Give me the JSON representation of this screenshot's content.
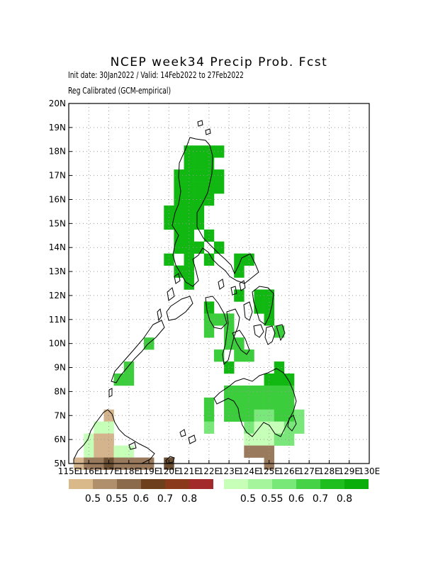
{
  "title": "NCEP week34 Precip Prob. Fcst",
  "subtitle_line1": "Init date: 30Jan2022 / Valid: 14Feb2022 to 27Feb2022",
  "subtitle_line2": "Reg Calibrated (GCM-empirical)",
  "axes": {
    "lon_range": [
      115,
      130
    ],
    "lat_range": [
      5,
      20
    ],
    "lon_tick_labels": [
      "115E",
      "116E",
      "117E",
      "118E",
      "119E",
      "120E",
      "121E",
      "122E",
      "123E",
      "124E",
      "125E",
      "126E",
      "127E",
      "128E",
      "129E",
      "130E"
    ],
    "lat_tick_labels": [
      "5N",
      "6N",
      "7N",
      "8N",
      "9N",
      "10N",
      "11N",
      "12N",
      "13N",
      "14N",
      "15N",
      "16N",
      "17N",
      "18N",
      "19N",
      "20N"
    ],
    "grid": true,
    "grid_style": "dotted"
  },
  "legend_dry": {
    "colors": [
      "#d9b98a",
      "#b0906c",
      "#8b6a4c",
      "#6e3f1c",
      "#8a3a1a",
      "#a22a2a"
    ],
    "labels": [
      "0.5",
      "0.55",
      "0.6",
      "0.7",
      "0.8"
    ]
  },
  "legend_wet": {
    "colors": [
      "#c8ffb8",
      "#a4f59c",
      "#78e878",
      "#46d246",
      "#1ebe1e",
      "#0aae0a"
    ],
    "labels": [
      "0.5",
      "0.55",
      "0.6",
      "0.7",
      "0.8"
    ]
  },
  "colors": {
    "wet_high": "#11b811",
    "wet_mid": "#3ccd3c",
    "wet_low": "#7ae77a",
    "wet_faint": "#c6ffb8",
    "dry_light": "#d4b48c",
    "dry_mid": "#9a7a5c",
    "dry_dark": "#6b4f33"
  },
  "chart_data": {
    "type": "heatmap",
    "cell_size_deg": 0.5,
    "cells": [
      {
        "lon": 121.0,
        "lat": 18.0,
        "c": "wet_high"
      },
      {
        "lon": 121.5,
        "lat": 18.0,
        "c": "wet_high"
      },
      {
        "lon": 122.0,
        "lat": 18.0,
        "c": "wet_high"
      },
      {
        "lon": 122.5,
        "lat": 18.0,
        "c": "wet_high"
      },
      {
        "lon": 121.0,
        "lat": 17.5,
        "c": "wet_high"
      },
      {
        "lon": 121.5,
        "lat": 17.5,
        "c": "wet_high"
      },
      {
        "lon": 122.0,
        "lat": 17.5,
        "c": "wet_high"
      },
      {
        "lon": 120.5,
        "lat": 17.0,
        "c": "wet_high"
      },
      {
        "lon": 121.0,
        "lat": 17.0,
        "c": "wet_high"
      },
      {
        "lon": 121.5,
        "lat": 17.0,
        "c": "wet_high"
      },
      {
        "lon": 122.0,
        "lat": 17.0,
        "c": "wet_high"
      },
      {
        "lon": 122.5,
        "lat": 17.0,
        "c": "wet_high"
      },
      {
        "lon": 120.5,
        "lat": 16.5,
        "c": "wet_high"
      },
      {
        "lon": 121.0,
        "lat": 16.5,
        "c": "wet_high"
      },
      {
        "lon": 121.5,
        "lat": 16.5,
        "c": "wet_high"
      },
      {
        "lon": 122.0,
        "lat": 16.5,
        "c": "wet_high"
      },
      {
        "lon": 122.5,
        "lat": 16.5,
        "c": "wet_high"
      },
      {
        "lon": 120.5,
        "lat": 16.0,
        "c": "wet_high"
      },
      {
        "lon": 121.0,
        "lat": 16.0,
        "c": "wet_high"
      },
      {
        "lon": 121.5,
        "lat": 16.0,
        "c": "wet_high"
      },
      {
        "lon": 122.0,
        "lat": 16.0,
        "c": "wet_high"
      },
      {
        "lon": 120.0,
        "lat": 15.5,
        "c": "wet_high"
      },
      {
        "lon": 120.5,
        "lat": 15.5,
        "c": "wet_high"
      },
      {
        "lon": 121.0,
        "lat": 15.5,
        "c": "wet_high"
      },
      {
        "lon": 121.5,
        "lat": 15.5,
        "c": "wet_high"
      },
      {
        "lon": 120.0,
        "lat": 15.0,
        "c": "wet_high"
      },
      {
        "lon": 120.5,
        "lat": 15.0,
        "c": "wet_high"
      },
      {
        "lon": 121.0,
        "lat": 15.0,
        "c": "wet_high"
      },
      {
        "lon": 121.5,
        "lat": 15.0,
        "c": "wet_high"
      },
      {
        "lon": 120.5,
        "lat": 14.5,
        "c": "wet_high"
      },
      {
        "lon": 121.0,
        "lat": 14.5,
        "c": "wet_high"
      },
      {
        "lon": 122.0,
        "lat": 14.5,
        "c": "wet_high"
      },
      {
        "lon": 120.5,
        "lat": 14.0,
        "c": "wet_high"
      },
      {
        "lon": 121.0,
        "lat": 14.0,
        "c": "wet_high"
      },
      {
        "lon": 121.5,
        "lat": 14.0,
        "c": "wet_high"
      },
      {
        "lon": 122.5,
        "lat": 14.0,
        "c": "wet_high"
      },
      {
        "lon": 120.0,
        "lat": 13.5,
        "c": "wet_high"
      },
      {
        "lon": 121.0,
        "lat": 13.5,
        "c": "wet_high"
      },
      {
        "lon": 122.0,
        "lat": 13.5,
        "c": "wet_high"
      },
      {
        "lon": 123.5,
        "lat": 13.5,
        "c": "wet_high"
      },
      {
        "lon": 124.0,
        "lat": 13.5,
        "c": "wet_high"
      },
      {
        "lon": 120.5,
        "lat": 13.0,
        "c": "wet_high"
      },
      {
        "lon": 121.0,
        "lat": 13.0,
        "c": "wet_high"
      },
      {
        "lon": 123.5,
        "lat": 13.0,
        "c": "wet_high"
      },
      {
        "lon": 121.0,
        "lat": 12.5,
        "c": "wet_high"
      },
      {
        "lon": 123.5,
        "lat": 12.0,
        "c": "wet_high"
      },
      {
        "lon": 124.5,
        "lat": 12.0,
        "c": "wet_high"
      },
      {
        "lon": 125.0,
        "lat": 12.0,
        "c": "wet_high"
      },
      {
        "lon": 122.0,
        "lat": 11.5,
        "c": "wet_high"
      },
      {
        "lon": 124.5,
        "lat": 11.5,
        "c": "wet_high"
      },
      {
        "lon": 125.0,
        "lat": 11.5,
        "c": "wet_high"
      },
      {
        "lon": 122.0,
        "lat": 11.0,
        "c": "wet_mid"
      },
      {
        "lon": 122.5,
        "lat": 11.0,
        "c": "wet_mid"
      },
      {
        "lon": 123.0,
        "lat": 11.0,
        "c": "wet_mid"
      },
      {
        "lon": 125.0,
        "lat": 11.0,
        "c": "wet_high"
      },
      {
        "lon": 122.0,
        "lat": 10.5,
        "c": "wet_mid"
      },
      {
        "lon": 123.0,
        "lat": 10.5,
        "c": "wet_mid"
      },
      {
        "lon": 125.5,
        "lat": 10.5,
        "c": "wet_mid"
      },
      {
        "lon": 123.0,
        "lat": 10.0,
        "c": "wet_mid"
      },
      {
        "lon": 123.5,
        "lat": 10.0,
        "c": "wet_mid"
      },
      {
        "lon": 119.0,
        "lat": 10.0,
        "c": "wet_mid"
      },
      {
        "lon": 122.5,
        "lat": 9.5,
        "c": "wet_mid"
      },
      {
        "lon": 123.5,
        "lat": 9.5,
        "c": "wet_mid"
      },
      {
        "lon": 124.0,
        "lat": 9.5,
        "c": "wet_mid"
      },
      {
        "lon": 118.0,
        "lat": 9.0,
        "c": "wet_mid"
      },
      {
        "lon": 123.0,
        "lat": 9.0,
        "c": "wet_high"
      },
      {
        "lon": 125.5,
        "lat": 9.0,
        "c": "wet_high"
      },
      {
        "lon": 117.5,
        "lat": 8.5,
        "c": "wet_mid"
      },
      {
        "lon": 118.0,
        "lat": 8.5,
        "c": "wet_mid"
      },
      {
        "lon": 125.0,
        "lat": 8.5,
        "c": "wet_high"
      },
      {
        "lon": 125.5,
        "lat": 8.5,
        "c": "wet_high"
      },
      {
        "lon": 126.0,
        "lat": 8.5,
        "c": "wet_high"
      },
      {
        "lon": 123.0,
        "lat": 8.0,
        "c": "wet_mid"
      },
      {
        "lon": 123.5,
        "lat": 8.0,
        "c": "wet_mid"
      },
      {
        "lon": 124.0,
        "lat": 8.0,
        "c": "wet_mid"
      },
      {
        "lon": 124.5,
        "lat": 8.0,
        "c": "wet_mid"
      },
      {
        "lon": 125.0,
        "lat": 8.0,
        "c": "wet_mid"
      },
      {
        "lon": 125.5,
        "lat": 8.0,
        "c": "wet_mid"
      },
      {
        "lon": 126.0,
        "lat": 8.0,
        "c": "wet_mid"
      },
      {
        "lon": 122.0,
        "lat": 7.5,
        "c": "wet_mid"
      },
      {
        "lon": 123.0,
        "lat": 7.5,
        "c": "wet_mid"
      },
      {
        "lon": 123.5,
        "lat": 7.5,
        "c": "wet_mid"
      },
      {
        "lon": 124.0,
        "lat": 7.5,
        "c": "wet_mid"
      },
      {
        "lon": 124.5,
        "lat": 7.5,
        "c": "wet_mid"
      },
      {
        "lon": 125.0,
        "lat": 7.5,
        "c": "wet_mid"
      },
      {
        "lon": 125.5,
        "lat": 7.5,
        "c": "wet_mid"
      },
      {
        "lon": 126.0,
        "lat": 7.5,
        "c": "wet_mid"
      },
      {
        "lon": 122.0,
        "lat": 7.0,
        "c": "wet_mid"
      },
      {
        "lon": 123.0,
        "lat": 7.0,
        "c": "wet_mid"
      },
      {
        "lon": 123.5,
        "lat": 7.0,
        "c": "wet_mid"
      },
      {
        "lon": 124.0,
        "lat": 7.0,
        "c": "wet_mid"
      },
      {
        "lon": 124.5,
        "lat": 7.0,
        "c": "wet_low"
      },
      {
        "lon": 125.0,
        "lat": 7.0,
        "c": "wet_low"
      },
      {
        "lon": 125.5,
        "lat": 7.0,
        "c": "wet_mid"
      },
      {
        "lon": 126.0,
        "lat": 7.0,
        "c": "wet_mid"
      },
      {
        "lon": 126.5,
        "lat": 7.0,
        "c": "wet_low"
      },
      {
        "lon": 122.0,
        "lat": 6.5,
        "c": "wet_low"
      },
      {
        "lon": 124.0,
        "lat": 6.5,
        "c": "wet_low"
      },
      {
        "lon": 124.5,
        "lat": 6.5,
        "c": "wet_faint"
      },
      {
        "lon": 125.0,
        "lat": 6.5,
        "c": "wet_faint"
      },
      {
        "lon": 125.5,
        "lat": 6.5,
        "c": "wet_faint"
      },
      {
        "lon": 126.0,
        "lat": 6.5,
        "c": "wet_low"
      },
      {
        "lon": 126.5,
        "lat": 6.5,
        "c": "wet_low"
      },
      {
        "lon": 124.0,
        "lat": 6.0,
        "c": "wet_faint"
      },
      {
        "lon": 124.5,
        "lat": 6.0,
        "c": "wet_faint"
      },
      {
        "lon": 125.0,
        "lat": 6.0,
        "c": "wet_faint"
      },
      {
        "lon": 125.5,
        "lat": 6.0,
        "c": "wet_low"
      },
      {
        "lon": 126.0,
        "lat": 6.0,
        "c": "wet_low"
      },
      {
        "lon": 124.0,
        "lat": 5.5,
        "c": "dry_mid"
      },
      {
        "lon": 124.5,
        "lat": 5.5,
        "c": "dry_mid"
      },
      {
        "lon": 125.0,
        "lat": 5.5,
        "c": "dry_mid"
      },
      {
        "lon": 125.0,
        "lat": 5.0,
        "c": "dry_mid"
      },
      {
        "lon": 117.0,
        "lat": 7.0,
        "c": "dry_light"
      },
      {
        "lon": 116.5,
        "lat": 6.5,
        "c": "wet_faint"
      },
      {
        "lon": 117.0,
        "lat": 6.5,
        "c": "wet_faint"
      },
      {
        "lon": 116.0,
        "lat": 6.0,
        "c": "wet_faint"
      },
      {
        "lon": 116.5,
        "lat": 6.0,
        "c": "dry_light"
      },
      {
        "lon": 117.0,
        "lat": 6.0,
        "c": "dry_light"
      },
      {
        "lon": 116.0,
        "lat": 5.5,
        "c": "wet_faint"
      },
      {
        "lon": 116.5,
        "lat": 5.5,
        "c": "dry_light"
      },
      {
        "lon": 117.0,
        "lat": 5.5,
        "c": "dry_light"
      },
      {
        "lon": 117.5,
        "lat": 5.5,
        "c": "wet_faint"
      },
      {
        "lon": 118.0,
        "lat": 5.5,
        "c": "wet_faint"
      },
      {
        "lon": 115.5,
        "lat": 5.0,
        "c": "dry_light"
      },
      {
        "lon": 116.0,
        "lat": 5.0,
        "c": "dry_mid"
      },
      {
        "lon": 116.5,
        "lat": 5.0,
        "c": "dry_mid"
      },
      {
        "lon": 117.0,
        "lat": 5.0,
        "c": "dry_dark"
      },
      {
        "lon": 117.5,
        "lat": 5.0,
        "c": "dry_mid"
      },
      {
        "lon": 118.0,
        "lat": 5.0,
        "c": "dry_mid"
      },
      {
        "lon": 118.5,
        "lat": 5.0,
        "c": "dry_mid"
      },
      {
        "lon": 119.0,
        "lat": 5.0,
        "c": "dry_mid"
      },
      {
        "lon": 120.0,
        "lat": 5.0,
        "c": "dry_dark"
      }
    ]
  }
}
